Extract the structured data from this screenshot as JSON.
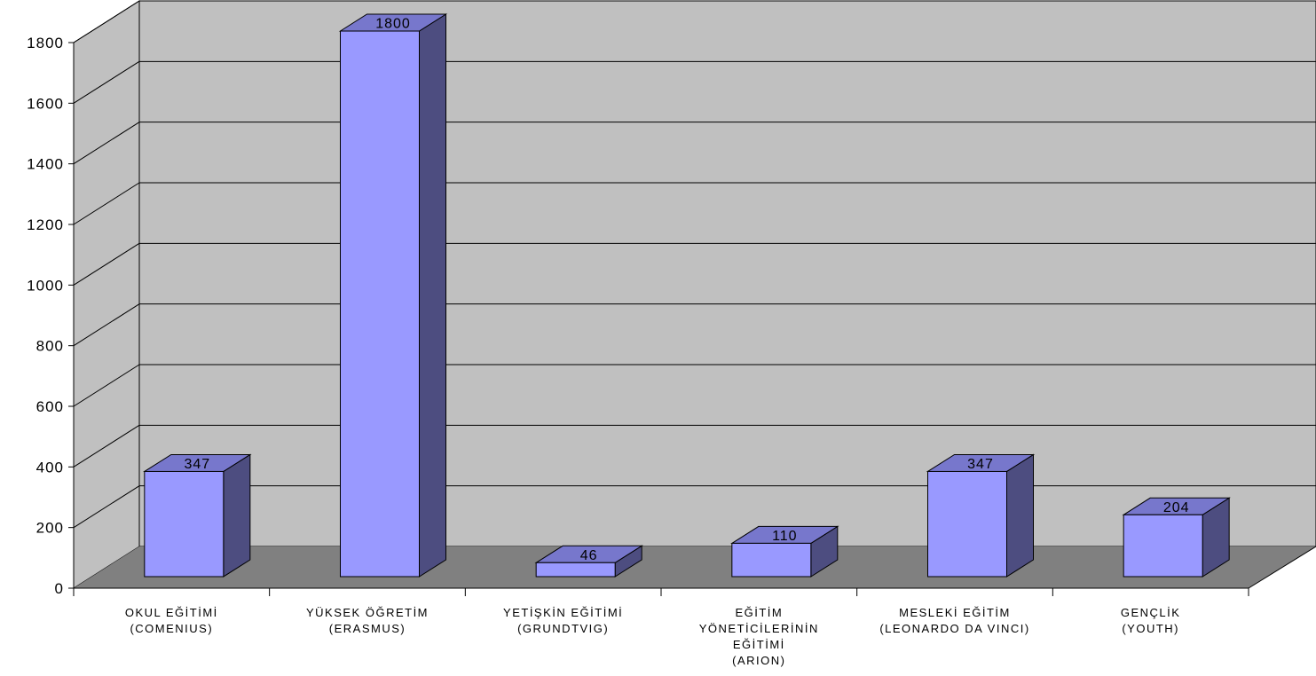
{
  "chart_data": {
    "type": "bar",
    "title": "",
    "xlabel": "",
    "ylabel": "",
    "categories": [
      [
        "OKUL EĞİTİMİ",
        "(COMENIUS)"
      ],
      [
        "YÜKSEK ÖĞRETİM",
        "(ERASMUS)"
      ],
      [
        "YETİŞKİN EĞİTİMİ",
        "(GRUNDTVIG)"
      ],
      [
        "EĞİTİM",
        "YÖNETİCİLERİNİN",
        "EĞİTİMİ",
        "(ARION)"
      ],
      [
        "MESLEKİ EĞİTİM",
        "(LEONARDO DA VINCI)"
      ],
      [
        "GENÇLİK",
        "(YOUTH)"
      ]
    ],
    "values": [
      347,
      1800,
      46,
      110,
      347,
      204
    ],
    "data_labels": [
      "347",
      "1800",
      "46",
      "110",
      "347",
      "204"
    ],
    "yticks": [
      "0",
      "200",
      "400",
      "600",
      "800",
      "1000",
      "1200",
      "1400",
      "1600",
      "1800"
    ],
    "ylim": [
      0,
      1800
    ],
    "grid": true,
    "legend": "none",
    "style": "3d-column",
    "colors": {
      "bar_front": "#9999ff",
      "bar_side": "#4d4d80",
      "bar_top": "#7777cc",
      "wall": "#c0c0c0",
      "floor": "#808080"
    }
  }
}
